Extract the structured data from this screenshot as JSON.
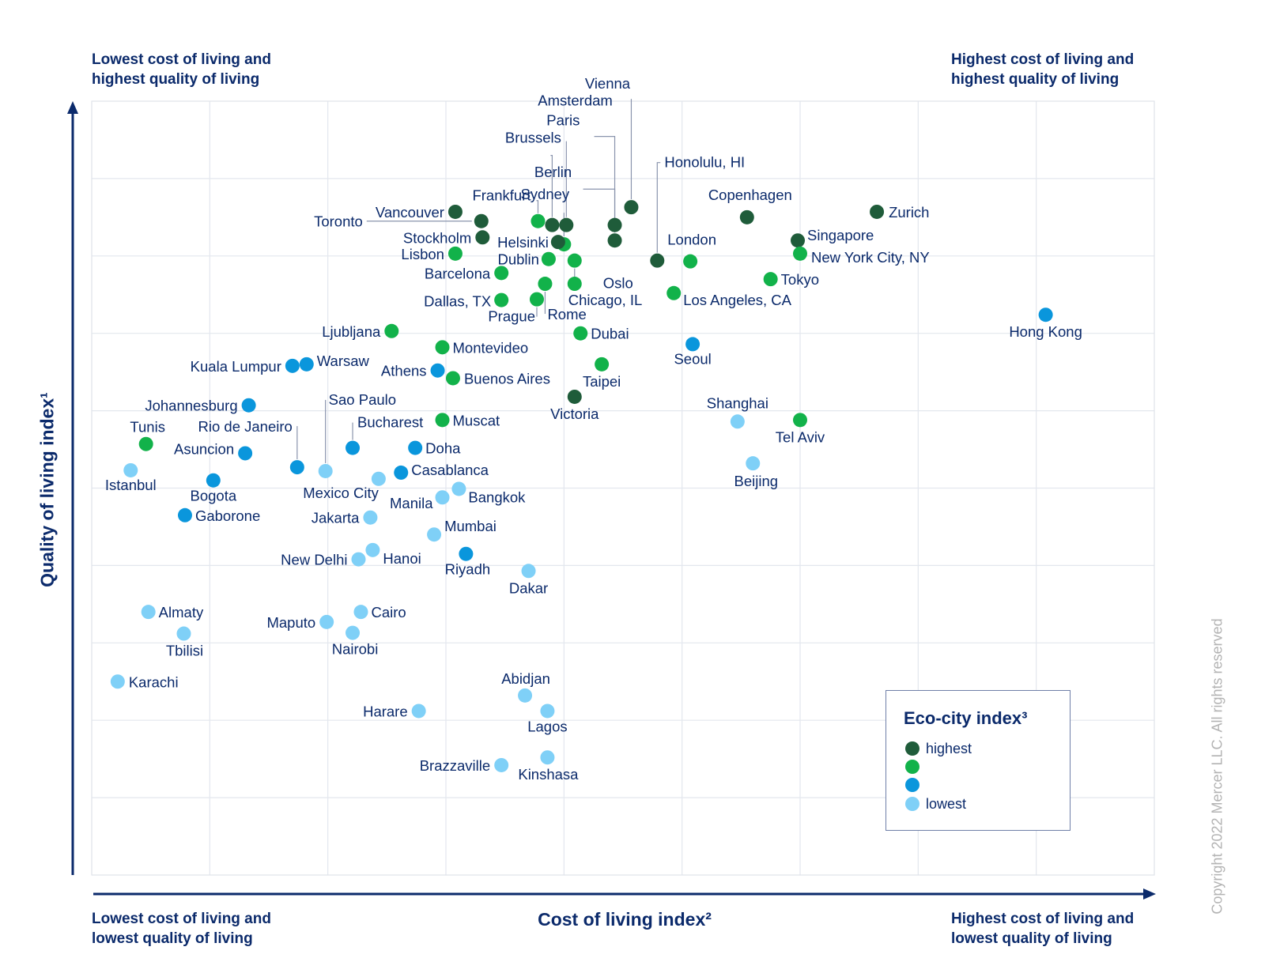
{
  "chart_data": {
    "type": "scatter",
    "title": "",
    "xlabel": "Cost of living index²",
    "ylabel": "Quality of living index¹",
    "xlim": [
      0,
      9
    ],
    "ylim": [
      0,
      10
    ],
    "grid": true,
    "corner_labels": {
      "top_left": [
        "Lowest cost of living and",
        "highest quality of living"
      ],
      "top_right": [
        "Highest cost of living and",
        "highest quality of living"
      ],
      "bottom_left": [
        "Lowest cost of living and",
        "lowest quality of living"
      ],
      "bottom_right": [
        "Highest cost of living and",
        "lowest quality of living"
      ]
    },
    "legend": {
      "title": "Eco-city index³",
      "placement": "bottom-right",
      "items": [
        {
          "label": "highest",
          "color": "#1f5c3a"
        },
        {
          "label": "",
          "color": "#12b24a"
        },
        {
          "label": "",
          "color": "#0a96dc"
        },
        {
          "label": "lowest",
          "color": "#7fd0f7"
        }
      ]
    },
    "points": [
      {
        "label": "Vienna",
        "x": 4.57,
        "y": 8.63,
        "eco": 1
      },
      {
        "label": "Amsterdam",
        "x": 4.43,
        "y": 8.4,
        "eco": 1
      },
      {
        "label": "Paris",
        "x": 4.02,
        "y": 8.4,
        "eco": 1
      },
      {
        "label": "Brussels",
        "x": 3.9,
        "y": 8.4,
        "eco": 1
      },
      {
        "label": "Berlin",
        "x": 4.43,
        "y": 8.2,
        "eco": 1
      },
      {
        "label": "Sydney",
        "x": 4.0,
        "y": 8.15,
        "eco": 2
      },
      {
        "label": "Frankfurt",
        "x": 3.78,
        "y": 8.45,
        "eco": 2
      },
      {
        "label": "Honolulu, HI",
        "x": 4.79,
        "y": 7.94,
        "eco": 1
      },
      {
        "label": "Copenhagen",
        "x": 5.55,
        "y": 8.5,
        "eco": 1
      },
      {
        "label": "Zurich",
        "x": 6.65,
        "y": 8.57,
        "eco": 1
      },
      {
        "label": "Vancouver",
        "x": 3.08,
        "y": 8.57,
        "eco": 1
      },
      {
        "label": "Toronto",
        "x": 3.3,
        "y": 8.45,
        "eco": 1
      },
      {
        "label": "Stockholm",
        "x": 3.31,
        "y": 8.24,
        "eco": 1
      },
      {
        "label": "Helsinki",
        "x": 3.95,
        "y": 8.18,
        "eco": 1
      },
      {
        "label": "Lisbon",
        "x": 3.08,
        "y": 8.03,
        "eco": 2
      },
      {
        "label": "Dublin",
        "x": 3.87,
        "y": 7.96,
        "eco": 2
      },
      {
        "label": "London",
        "x": 5.07,
        "y": 7.93,
        "eco": 2
      },
      {
        "label": "Singapore",
        "x": 5.98,
        "y": 8.2,
        "eco": 1
      },
      {
        "label": "New York City, NY",
        "x": 6.0,
        "y": 8.03,
        "eco": 2
      },
      {
        "label": "Barcelona",
        "x": 3.47,
        "y": 7.78,
        "eco": 2
      },
      {
        "label": "Oslo",
        "x": 4.09,
        "y": 7.94,
        "eco": 2
      },
      {
        "label": "Chicago, IL",
        "x": 4.09,
        "y": 7.64,
        "eco": 2
      },
      {
        "label": "Tokyo",
        "x": 5.75,
        "y": 7.7,
        "eco": 2
      },
      {
        "label": "Dallas, TX",
        "x": 3.47,
        "y": 7.43,
        "eco": 2
      },
      {
        "label": "Prague",
        "x": 3.77,
        "y": 7.44,
        "eco": 2
      },
      {
        "label": "Rome",
        "x": 3.84,
        "y": 7.64,
        "eco": 2
      },
      {
        "label": "Los Angeles, CA",
        "x": 4.93,
        "y": 7.52,
        "eco": 2
      },
      {
        "label": "Hong Kong",
        "x": 8.08,
        "y": 7.24,
        "eco": 3
      },
      {
        "label": "Ljubljana",
        "x": 2.54,
        "y": 7.03,
        "eco": 2
      },
      {
        "label": "Dubai",
        "x": 4.14,
        "y": 7.0,
        "eco": 2
      },
      {
        "label": "Montevideo",
        "x": 2.97,
        "y": 6.82,
        "eco": 2
      },
      {
        "label": "Seoul",
        "x": 5.09,
        "y": 6.86,
        "eco": 3
      },
      {
        "label": "Kuala Lumpur",
        "x": 1.7,
        "y": 6.58,
        "eco": 3
      },
      {
        "label": "Warsaw",
        "x": 1.82,
        "y": 6.6,
        "eco": 3
      },
      {
        "label": "Athens",
        "x": 2.93,
        "y": 6.52,
        "eco": 3
      },
      {
        "label": "Buenos Aires",
        "x": 3.06,
        "y": 6.42,
        "eco": 2
      },
      {
        "label": "Taipei",
        "x": 4.32,
        "y": 6.6,
        "eco": 2
      },
      {
        "label": "Johannesburg",
        "x": 1.33,
        "y": 6.07,
        "eco": 3
      },
      {
        "label": "Victoria",
        "x": 4.09,
        "y": 6.18,
        "eco": 1
      },
      {
        "label": "Shanghai",
        "x": 5.47,
        "y": 5.86,
        "eco": 4
      },
      {
        "label": "Tel Aviv",
        "x": 6.0,
        "y": 5.88,
        "eco": 2
      },
      {
        "label": "Sao Paulo",
        "x": 1.98,
        "y": 5.22,
        "eco": 4
      },
      {
        "label": "Bucharest",
        "x": 2.21,
        "y": 5.52,
        "eco": 3
      },
      {
        "label": "Muscat",
        "x": 2.97,
        "y": 5.88,
        "eco": 2
      },
      {
        "label": "Doha",
        "x": 2.74,
        "y": 5.52,
        "eco": 3
      },
      {
        "label": "Tunis",
        "x": 0.46,
        "y": 5.57,
        "eco": 2
      },
      {
        "label": "Rio de Janeiro",
        "x": 1.74,
        "y": 5.27,
        "eco": 3
      },
      {
        "label": "Asuncion",
        "x": 1.3,
        "y": 5.45,
        "eco": 3
      },
      {
        "label": "Istanbul",
        "x": 0.33,
        "y": 5.23,
        "eco": 4
      },
      {
        "label": "Bogota",
        "x": 1.03,
        "y": 5.1,
        "eco": 3
      },
      {
        "label": "Mexico City",
        "x": 2.43,
        "y": 5.12,
        "eco": 4
      },
      {
        "label": "Casablanca",
        "x": 2.62,
        "y": 5.2,
        "eco": 3
      },
      {
        "label": "Beijing",
        "x": 5.6,
        "y": 5.32,
        "eco": 4
      },
      {
        "label": "Manila",
        "x": 2.97,
        "y": 4.88,
        "eco": 4
      },
      {
        "label": "Bangkok",
        "x": 3.11,
        "y": 4.99,
        "eco": 4
      },
      {
        "label": "Gaborone",
        "x": 0.79,
        "y": 4.65,
        "eco": 3
      },
      {
        "label": "Jakarta",
        "x": 2.36,
        "y": 4.62,
        "eco": 4
      },
      {
        "label": "Mumbai",
        "x": 2.9,
        "y": 4.4,
        "eco": 4
      },
      {
        "label": "New Delhi",
        "x": 2.26,
        "y": 4.08,
        "eco": 4
      },
      {
        "label": "Hanoi",
        "x": 2.38,
        "y": 4.2,
        "eco": 4
      },
      {
        "label": "Riyadh",
        "x": 3.17,
        "y": 4.15,
        "eco": 3
      },
      {
        "label": "Dakar",
        "x": 3.7,
        "y": 3.93,
        "eco": 4
      },
      {
        "label": "Almaty",
        "x": 0.48,
        "y": 3.4,
        "eco": 4
      },
      {
        "label": "Tbilisi",
        "x": 0.78,
        "y": 3.12,
        "eco": 4
      },
      {
        "label": "Cairo",
        "x": 2.28,
        "y": 3.4,
        "eco": 4
      },
      {
        "label": "Maputo",
        "x": 1.99,
        "y": 3.27,
        "eco": 4
      },
      {
        "label": "Nairobi",
        "x": 2.21,
        "y": 3.13,
        "eco": 4
      },
      {
        "label": "Karachi",
        "x": 0.22,
        "y": 2.5,
        "eco": 4
      },
      {
        "label": "Abidjan",
        "x": 3.67,
        "y": 2.32,
        "eco": 4
      },
      {
        "label": "Harare",
        "x": 2.77,
        "y": 2.12,
        "eco": 4
      },
      {
        "label": "Lagos",
        "x": 3.86,
        "y": 2.12,
        "eco": 4
      },
      {
        "label": "Brazzaville",
        "x": 3.47,
        "y": 1.42,
        "eco": 4
      },
      {
        "label": "Kinshasa",
        "x": 3.86,
        "y": 1.52,
        "eco": 4
      }
    ]
  },
  "copyright": "Copyright 2022 Mercer LLC. All rights reserved"
}
